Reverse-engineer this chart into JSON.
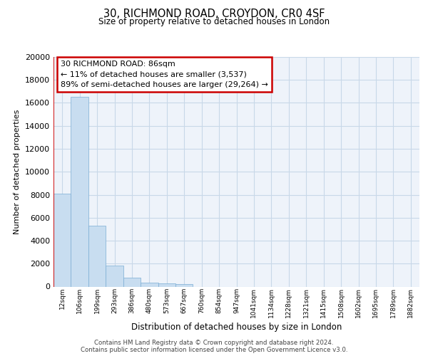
{
  "title1": "30, RICHMOND ROAD, CROYDON, CR0 4SF",
  "title2": "Size of property relative to detached houses in London",
  "xlabel": "Distribution of detached houses by size in London",
  "ylabel": "Number of detached properties",
  "bar_values": [
    8100,
    16500,
    5300,
    1800,
    750,
    350,
    270,
    200,
    0,
    0,
    0,
    0,
    0,
    0,
    0,
    0,
    0,
    0,
    0,
    0,
    0
  ],
  "bar_labels": [
    "12sqm",
    "106sqm",
    "199sqm",
    "293sqm",
    "386sqm",
    "480sqm",
    "573sqm",
    "667sqm",
    "760sqm",
    "854sqm",
    "947sqm",
    "1041sqm",
    "1134sqm",
    "1228sqm",
    "1321sqm",
    "1415sqm",
    "1508sqm",
    "1602sqm",
    "1695sqm",
    "1789sqm",
    "1882sqm"
  ],
  "bar_color": "#c8ddf0",
  "bar_edge_color": "#7aadd4",
  "grid_color": "#c8d8e8",
  "background_color": "#eef3fa",
  "annotation_box_edge_color": "#cc0000",
  "annotation_vline_color": "#cc0000",
  "annotation_text": "30 RICHMOND ROAD: 86sqm\n← 11% of detached houses are smaller (3,537)\n89% of semi-detached houses are larger (29,264) →",
  "vline_bar_index": 0,
  "ylim_max": 20000,
  "yticks": [
    0,
    2000,
    4000,
    6000,
    8000,
    10000,
    12000,
    14000,
    16000,
    18000,
    20000
  ],
  "footer1": "Contains HM Land Registry data © Crown copyright and database right 2024.",
  "footer2": "Contains public sector information licensed under the Open Government Licence v3.0."
}
